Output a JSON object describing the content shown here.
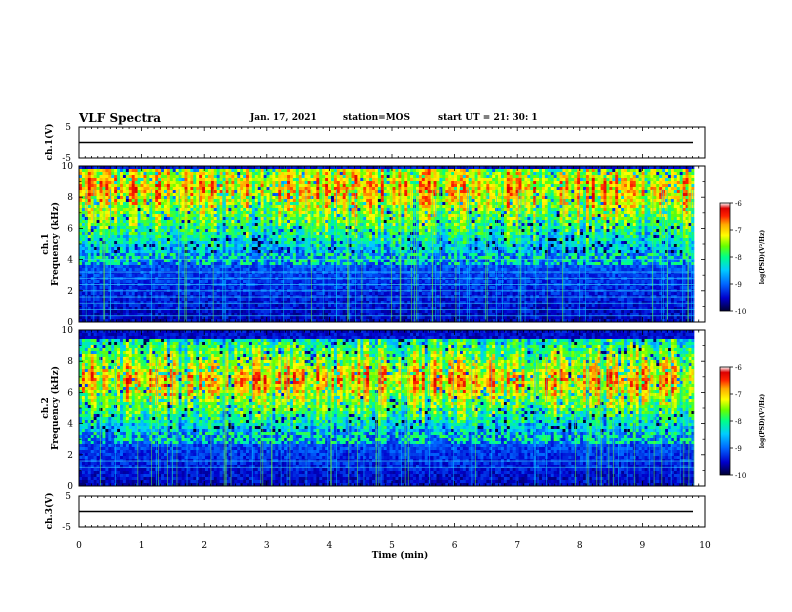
{
  "header": {
    "title": "VLF Spectra",
    "date": "Jan. 17, 2021",
    "station": "station=MOS",
    "start": "start  UT =   21: 30: 1"
  },
  "colors": {
    "colormap": [
      "#000033",
      "#0000cc",
      "#0066ff",
      "#00ccff",
      "#00ff88",
      "#66ff00",
      "#ffff00",
      "#ffaa00",
      "#ff2200",
      "#dd0000",
      "#ffffff"
    ]
  },
  "chart_data": [
    {
      "id": "ch1-waveform",
      "type": "line",
      "ylabel": "ch.1(V)",
      "ylim": [
        -5,
        5
      ],
      "y_ticks": [
        "5",
        "-5"
      ],
      "xlim": [
        0,
        10
      ],
      "baseline": 0
    },
    {
      "id": "ch1-spectrogram",
      "type": "heatmap",
      "ylabel": "ch.1\nFrequency (kHz)",
      "ylim": [
        0,
        10
      ],
      "y_ticks": [
        "0",
        "2",
        "4",
        "6",
        "8",
        "10"
      ],
      "xlim": [
        0,
        9.83
      ],
      "colorbar": {
        "label": "log(PSD)(V²/Hz)",
        "range": [
          -10,
          -6
        ],
        "ticks": [
          "-6",
          "-7",
          "-8",
          "-9",
          "-10"
        ]
      },
      "band_kHz": [
        4.5,
        9.8
      ],
      "peak_kHz": 8.5,
      "lines_kHz": [
        0.4,
        0.8,
        1.2,
        1.6,
        2.0,
        2.4,
        2.8,
        3.2,
        4.0
      ]
    },
    {
      "id": "ch2-spectrogram",
      "type": "heatmap",
      "ylabel": "ch.2\nFrequency (kHz)",
      "ylim": [
        0,
        10
      ],
      "y_ticks": [
        "0",
        "2",
        "4",
        "6",
        "8",
        "10"
      ],
      "xlim": [
        0,
        9.83
      ],
      "colorbar": {
        "label": "log(PSD)(V²/Hz)",
        "range": [
          -10,
          -6
        ],
        "ticks": [
          "-6",
          "-7",
          "-8",
          "-9",
          "-10"
        ]
      },
      "band_kHz": [
        3.5,
        9.5
      ],
      "peak_kHz": 6.8,
      "lines_kHz": [
        1.2,
        1.6
      ]
    },
    {
      "id": "ch3-waveform",
      "type": "line",
      "ylabel": "ch.3(V)",
      "ylim": [
        -5,
        5
      ],
      "y_ticks": [
        "5",
        "-5"
      ],
      "xlim": [
        0,
        10
      ],
      "baseline": 0
    }
  ],
  "x_axis": {
    "label": "Time  (min)",
    "ticks": [
      "0",
      "1",
      "2",
      "3",
      "4",
      "5",
      "6",
      "7",
      "8",
      "9",
      "10"
    ],
    "range": [
      0,
      10
    ]
  }
}
